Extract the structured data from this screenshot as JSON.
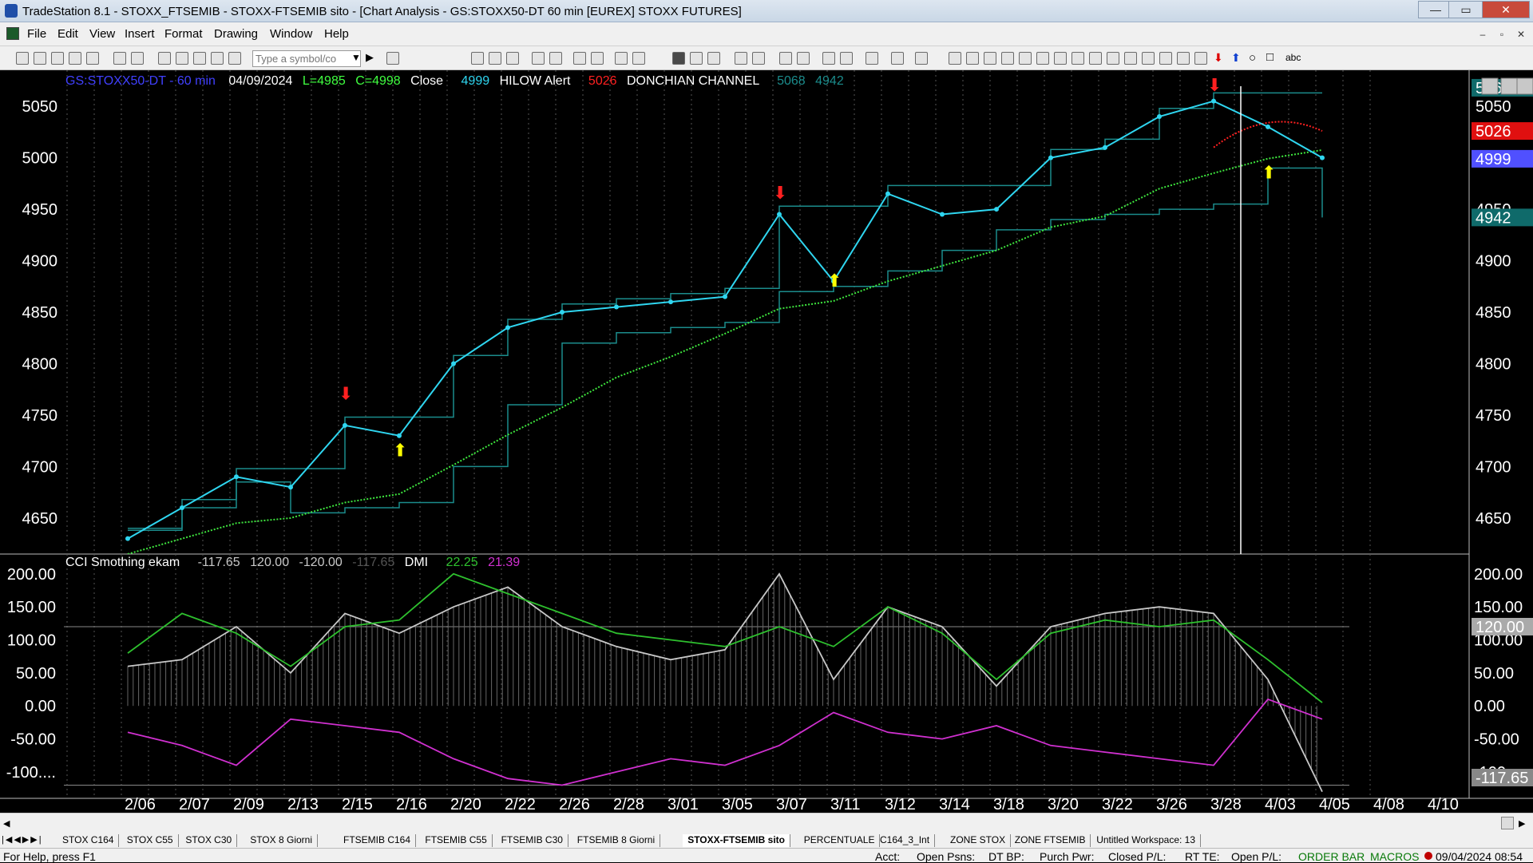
{
  "window": {
    "title": "TradeStation 8.1 - STOXX_FTSEMIB - STOXX-FTSEMIB sito - [Chart Analysis - GS:STOXX50-DT  60 min  [EUREX] STOXX FUTURES]",
    "minimize": "—",
    "maximize": "▭",
    "close": "✕"
  },
  "menu": [
    "File",
    "Edit",
    "View",
    "Insert",
    "Format",
    "Drawing",
    "Window",
    "Help"
  ],
  "toolbar": {
    "symbol_placeholder": "Type a symbol/co",
    "text_tool": "abc"
  },
  "chart": {
    "header": {
      "symbol": "GS:STOXX50-DT - 60 min",
      "date": "04/09/2024",
      "low": "L=4985",
      "close_val": "C=4998",
      "close_label": "Close",
      "close_num": "4999",
      "hilow": "HILOW Alert",
      "hilow_val": "5026",
      "donchian": "DONCHIAN CHANNEL",
      "don_up": "5068",
      "don_dn": "4942"
    },
    "indicator_header": {
      "name": "CCI Smothing ekam",
      "v1": "-117.65",
      "v2": "120.00",
      "v3": "-120.00",
      "v4": "-117.65",
      "dmi": "DMI",
      "dmi_plus": "22.25",
      "dmi_minus": "21.39"
    },
    "price_axis": [
      "5050",
      "5000",
      "4950",
      "4900",
      "4850",
      "4800",
      "4750",
      "4700",
      "4650"
    ],
    "price_tags": {
      "don_up": "5068",
      "price_top": "5050",
      "hilow": "5026",
      "close": "4999",
      "partial": "4950",
      "don_dn": "4942"
    },
    "ind_axis": [
      "200.00",
      "150.00",
      "100.00",
      "50.00",
      "0.00",
      "-50.00",
      "-100...."
    ],
    "ind_tags": {
      "level": "120.00",
      "partial": "100.00",
      "cci": "-117.65"
    },
    "dates": [
      "2/06",
      "2/07",
      "2/09",
      "2/13",
      "2/15",
      "2/16",
      "2/20",
      "2/22",
      "2/26",
      "2/28",
      "3/01",
      "3/05",
      "3/07",
      "3/11",
      "3/12",
      "3/14",
      "3/18",
      "3/20",
      "3/22",
      "3/26",
      "3/28",
      "4/03",
      "4/05",
      "4/08",
      "4/10"
    ],
    "colors": {
      "price": "#2fd6f0",
      "ma": "#3ee63e",
      "donchian": "#1b8c8c",
      "hilow": "#ff2020",
      "cci": "#c8c8c8",
      "dmi_plus": "#2ec02e",
      "dmi_minus": "#d030d0",
      "up_arrow": "#ffff00",
      "down_arrow": "#ff2020"
    }
  },
  "chart_data": {
    "type": "line",
    "xlabel": "",
    "ylabel": "",
    "ylim": [
      4615,
      5085
    ],
    "categories": [
      "2/06",
      "2/07",
      "2/09",
      "2/13",
      "2/15",
      "2/16",
      "2/20",
      "2/22",
      "2/26",
      "2/28",
      "3/01",
      "3/05",
      "3/07",
      "3/11",
      "3/12",
      "3/14",
      "3/18",
      "3/20",
      "3/22",
      "3/26",
      "3/28",
      "4/03",
      "4/05"
    ],
    "series": [
      {
        "name": "Close",
        "values": [
          4630,
          4660,
          4690,
          4680,
          4740,
          4730,
          4800,
          4835,
          4850,
          4855,
          4860,
          4865,
          4945,
          4880,
          4965,
          4945,
          4950,
          5000,
          5010,
          5040,
          5055,
          5030,
          5000
        ]
      },
      {
        "name": "DONCHIAN CHANNEL",
        "values": [
          4640,
          4660,
          4685,
          4655,
          4660,
          4665,
          4700,
          4760,
          4820,
          4830,
          4835,
          4840,
          4870,
          4875,
          4890,
          4910,
          4930,
          4940,
          4945,
          4950,
          4955,
          4990,
          4942
        ]
      }
    ],
    "markers": {
      "down": [
        {
          "x": "2/15",
          "y": 4765
        },
        {
          "x": "3/07",
          "y": 4960
        },
        {
          "x": "3/28",
          "y": 5065
        }
      ],
      "up": [
        {
          "x": "2/16",
          "y": 4710
        },
        {
          "x": "3/11",
          "y": 4875
        },
        {
          "x": "4/03",
          "y": 4980
        }
      ]
    },
    "indicator": {
      "ylim": [
        -140,
        230
      ],
      "level_lines": [
        120,
        -120
      ],
      "series": [
        {
          "name": "CCI Smothing ekam",
          "values": [
            60,
            70,
            120,
            50,
            140,
            110,
            150,
            180,
            120,
            90,
            70,
            85,
            200,
            40,
            150,
            120,
            30,
            120,
            140,
            150,
            140,
            40,
            -130
          ]
        },
        {
          "name": "DMI",
          "values": [
            80,
            140,
            110,
            60,
            120,
            130,
            200,
            170,
            140,
            110,
            100,
            90,
            120,
            90,
            150,
            110,
            40,
            110,
            130,
            120,
            130,
            70,
            5
          ]
        },
        {
          "name": "DMI minus",
          "values": [
            -40,
            -60,
            -90,
            -20,
            -30,
            -40,
            -80,
            -110,
            -120,
            -100,
            -80,
            -90,
            -60,
            -10,
            -40,
            -50,
            -30,
            -60,
            -70,
            -80,
            -90,
            10,
            -20
          ]
        }
      ]
    }
  },
  "tabs": [
    "STOX C164",
    "STOX C55",
    "STOX  C30",
    "STOX  8 Giorni",
    "FTSEMIB C164",
    "FTSEMIB C55",
    "FTSEMIB C30",
    "FTSEMIB  8 Giorni",
    "STOXX-FTSEMIB sito",
    "PERCENTUALE",
    "C164_3_Int",
    "ZONE STOX",
    "ZONE FTSEMIB",
    "Untitled Workspace:  13"
  ],
  "active_tab": "STOXX-FTSEMIB sito",
  "status": {
    "help": "For Help, press F1",
    "acct": "Acct:",
    "open_psns": "Open Psns:",
    "dt_bp": "DT BP:",
    "purch": "Purch Pwr:",
    "closed_pl": "Closed P/L:",
    "rt_te": "RT TE:",
    "open_pl": "Open P/L:",
    "order_bar": "ORDER BAR",
    "macros": "MACROS",
    "datetime": "09/04/2024 08:54"
  }
}
